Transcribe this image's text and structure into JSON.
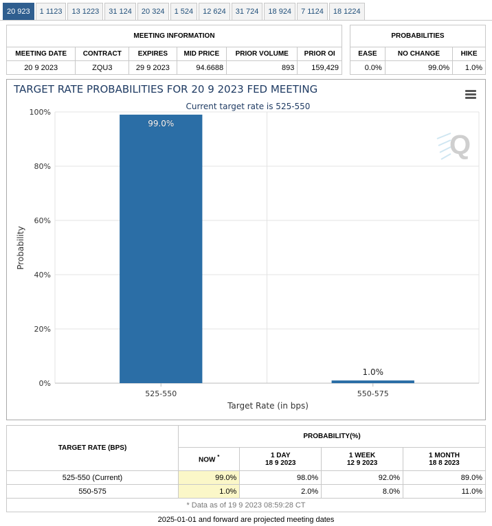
{
  "tabs": [
    {
      "label": "20 923",
      "active": true
    },
    {
      "label": "1 1123"
    },
    {
      "label": "13 1223"
    },
    {
      "label": "31 124"
    },
    {
      "label": "20 324"
    },
    {
      "label": "1 524"
    },
    {
      "label": "12 624"
    },
    {
      "label": "31 724"
    },
    {
      "label": "18 924"
    },
    {
      "label": "7 1124"
    },
    {
      "label": "18 1224"
    }
  ],
  "meeting": {
    "title": "MEETING INFORMATION",
    "headers": [
      "MEETING DATE",
      "CONTRACT",
      "EXPIRES",
      "MID PRICE",
      "PRIOR VOLUME",
      "PRIOR OI"
    ],
    "values": [
      "20 9 2023",
      "ZQU3",
      "29 9 2023",
      "94.6688",
      "893",
      "159,429"
    ]
  },
  "probabilities": {
    "title": "PROBABILITIES",
    "headers": [
      "EASE",
      "NO CHANGE",
      "HIKE"
    ],
    "values": [
      "0.0%",
      "99.0%",
      "1.0%"
    ]
  },
  "chart_data": {
    "type": "bar",
    "title": "TARGET RATE PROBABILITIES FOR 20 9 2023 FED MEETING",
    "subtitle": "Current target rate is 525-550",
    "xlabel": "Target Rate (in bps)",
    "ylabel": "Probability",
    "categories": [
      "525-550",
      "550-575"
    ],
    "values": [
      99.0,
      1.0
    ],
    "data_labels": [
      "99.0%",
      "1.0%"
    ],
    "ylim": [
      0,
      100
    ],
    "yticks": [
      "0%",
      "20%",
      "40%",
      "60%",
      "80%",
      "100%"
    ],
    "grid": true,
    "bar_color": "#2b6ea6",
    "legend": "none"
  },
  "rates_table": {
    "col1_header": "TARGET RATE (BPS)",
    "group_header": "PROBABILITY(%)",
    "columns": [
      {
        "label": "NOW",
        "marker": "*",
        "date": ""
      },
      {
        "label": "1 DAY",
        "date": "18 9 2023"
      },
      {
        "label": "1 WEEK",
        "date": "12 9 2023"
      },
      {
        "label": "1 MONTH",
        "date": "18 8 2023"
      }
    ],
    "rows": [
      {
        "rate": "525-550 (Current)",
        "values": [
          "99.0%",
          "98.0%",
          "92.0%",
          "89.0%"
        ]
      },
      {
        "rate": "550-575",
        "values": [
          "1.0%",
          "2.0%",
          "8.0%",
          "11.0%"
        ]
      }
    ],
    "footnote": "* Data as of 19 9 2023 08:59:28 CT"
  },
  "bottom_note": "2025-01-01 and forward are projected meeting dates",
  "icons": {
    "menu": "hamburger-menu-icon",
    "watermark": "q-logo-icon"
  }
}
